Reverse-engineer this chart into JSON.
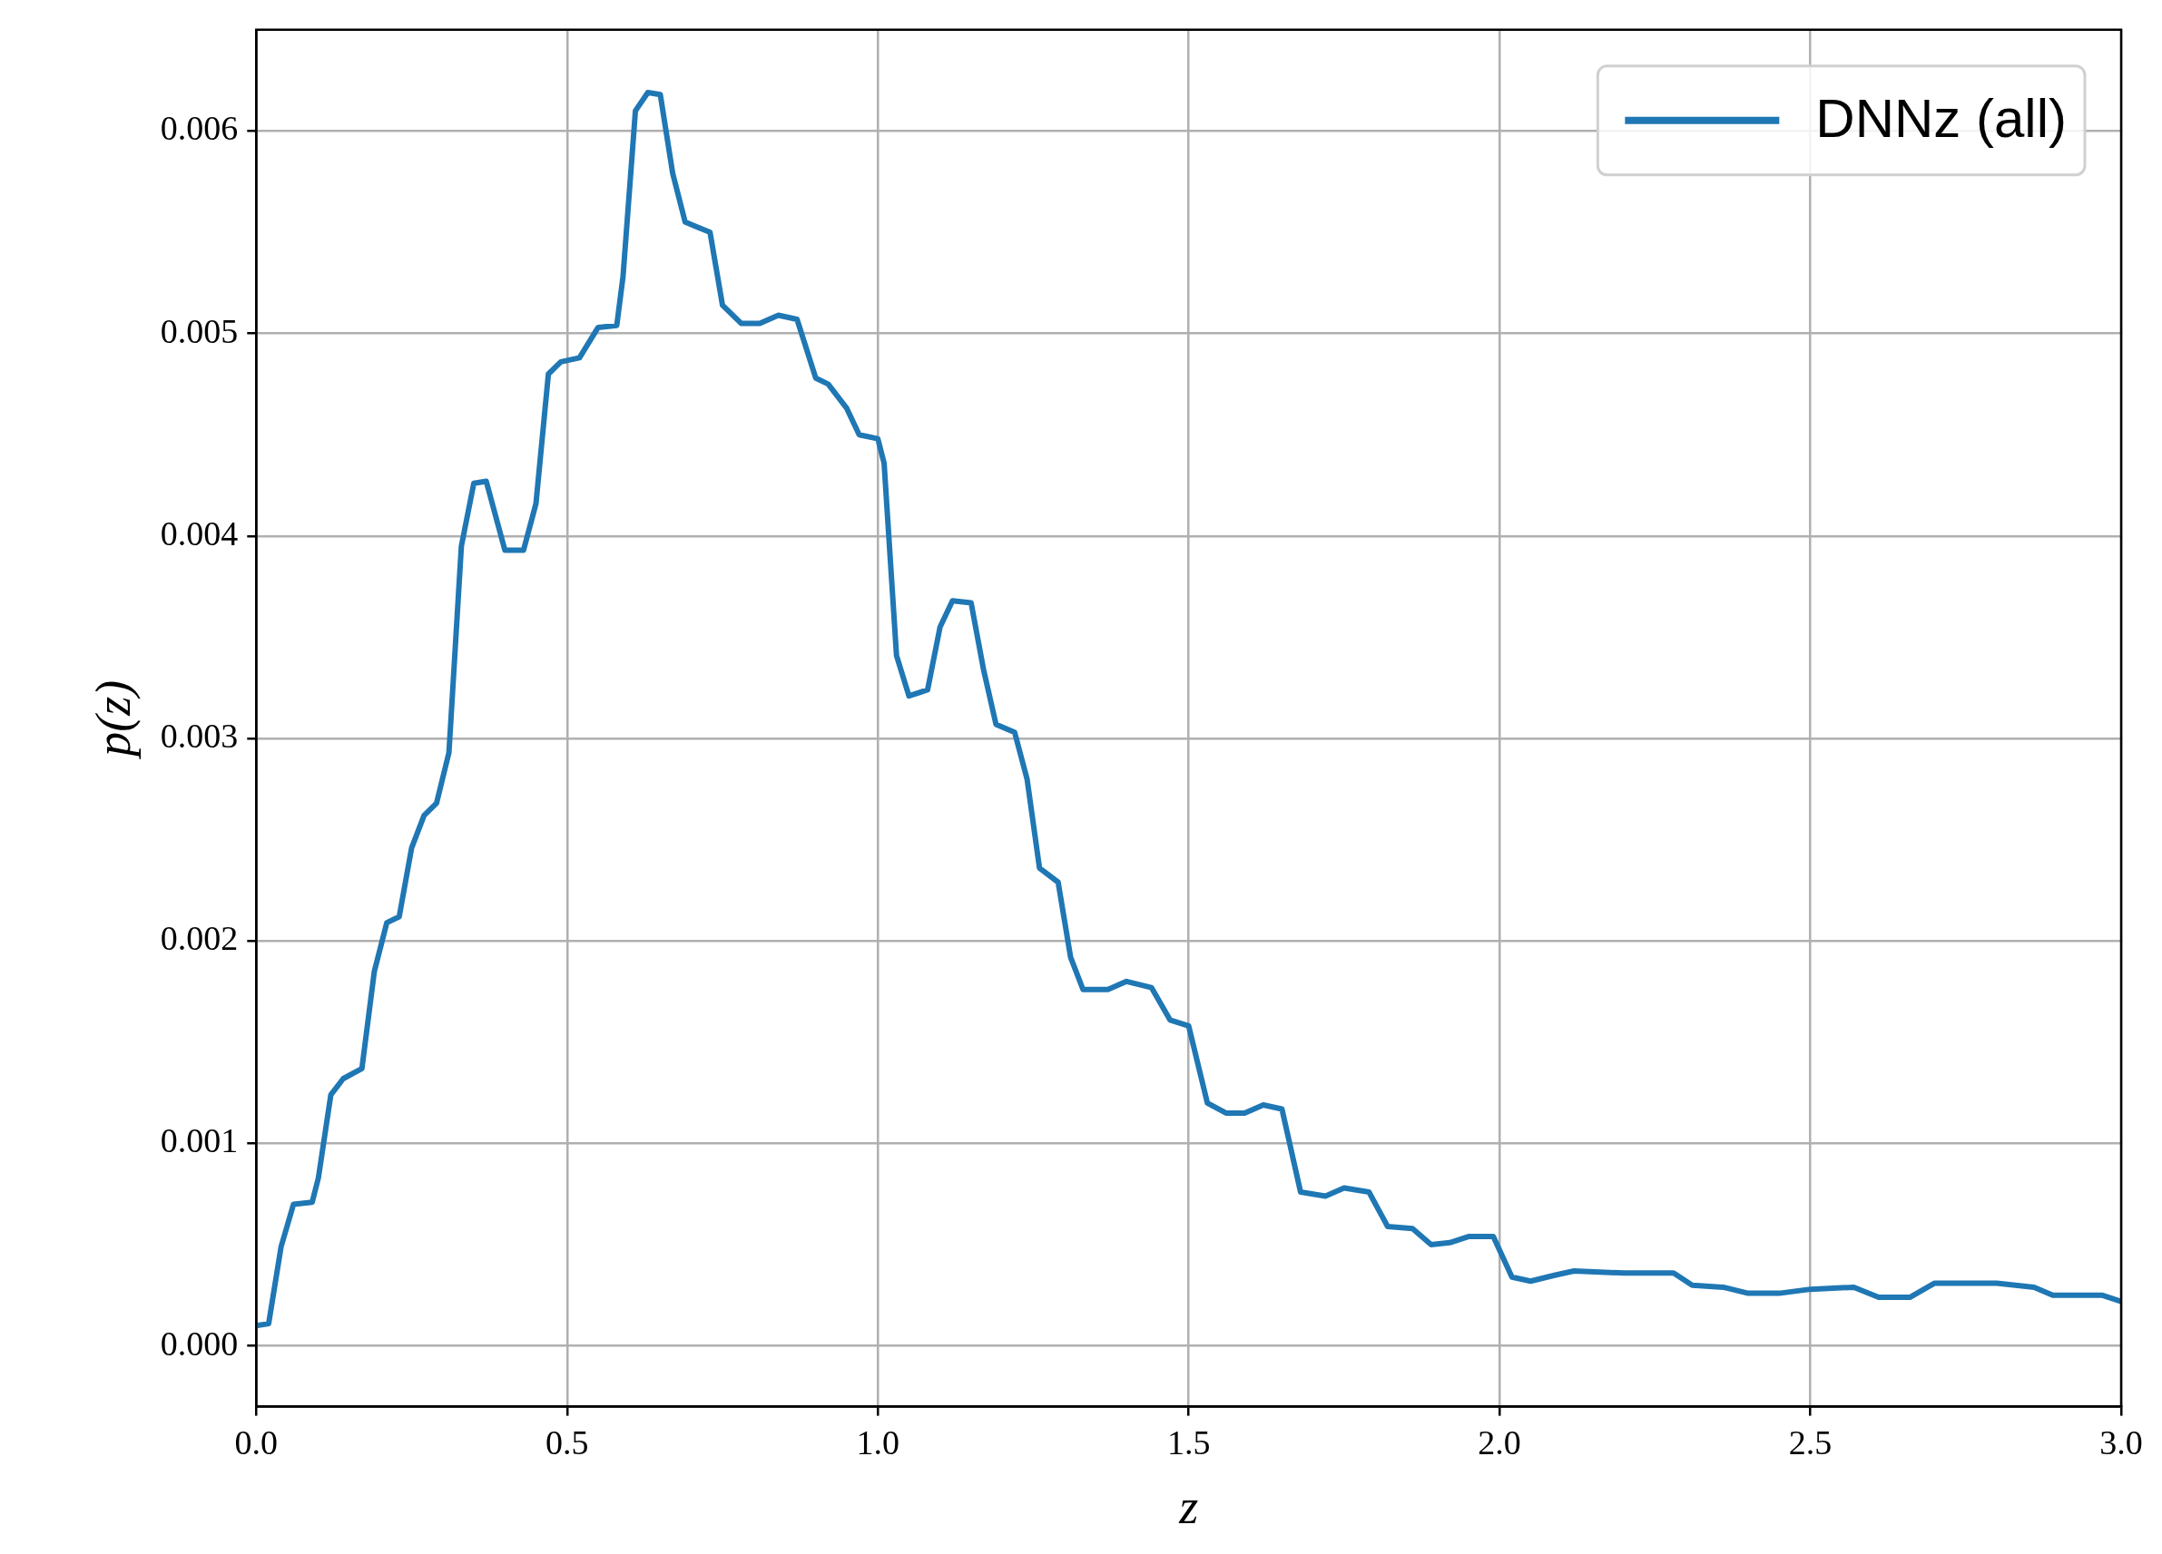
{
  "chart_data": {
    "type": "line",
    "xlabel": "z",
    "ylabel": "p(z)",
    "legend": "top right",
    "grid": true,
    "xlim": [
      0,
      3
    ],
    "ylim": [
      -0.0003,
      0.0065
    ],
    "xticks": [
      {
        "value": 0,
        "label": "0.0"
      },
      {
        "value": 0.5,
        "label": "0.5"
      },
      {
        "value": 1,
        "label": "1.0"
      },
      {
        "value": 1.5,
        "label": "1.5"
      },
      {
        "value": 2,
        "label": "2.0"
      },
      {
        "value": 2.5,
        "label": "2.5"
      },
      {
        "value": 3,
        "label": "3.0"
      }
    ],
    "yticks": [
      {
        "value": 0,
        "label": "0.000"
      },
      {
        "value": 0.001,
        "label": "0.001"
      },
      {
        "value": 0.002,
        "label": "0.002"
      },
      {
        "value": 0.003,
        "label": "0.003"
      },
      {
        "value": 0.004,
        "label": "0.004"
      },
      {
        "value": 0.005,
        "label": "0.005"
      },
      {
        "value": 0.006,
        "label": "0.006"
      }
    ],
    "series": [
      {
        "name": "DNNz (all)",
        "color": "#1f77b4",
        "x": [
          0,
          0.02,
          0.04,
          0.06,
          0.09,
          0.1,
          0.12,
          0.14,
          0.17,
          0.19,
          0.21,
          0.23,
          0.25,
          0.27,
          0.29,
          0.31,
          0.33,
          0.35,
          0.37,
          0.4,
          0.43,
          0.45,
          0.47,
          0.49,
          0.52,
          0.55,
          0.58,
          0.59,
          0.61,
          0.63,
          0.65,
          0.67,
          0.69,
          0.73,
          0.75,
          0.78,
          0.81,
          0.84,
          0.87,
          0.9,
          0.92,
          0.95,
          0.97,
          1.0,
          1.01,
          1.03,
          1.05,
          1.08,
          1.1,
          1.12,
          1.15,
          1.17,
          1.19,
          1.22,
          1.24,
          1.26,
          1.29,
          1.31,
          1.33,
          1.37,
          1.4,
          1.44,
          1.47,
          1.5,
          1.53,
          1.56,
          1.59,
          1.62,
          1.65,
          1.68,
          1.72,
          1.75,
          1.79,
          1.82,
          1.86,
          1.89,
          1.92,
          1.95,
          1.99,
          2.02,
          2.05,
          2.09,
          2.12,
          2.2,
          2.28,
          2.31,
          2.36,
          2.4,
          2.45,
          2.5,
          2.57,
          2.61,
          2.66,
          2.7,
          2.8,
          2.86,
          2.89,
          2.97,
          3.0
        ],
        "values": [
          0.0001,
          0.00011,
          0.00049,
          0.0007,
          0.00071,
          0.00083,
          0.00124,
          0.00132,
          0.00137,
          0.00185,
          0.00209,
          0.00212,
          0.00246,
          0.00262,
          0.00268,
          0.00293,
          0.00395,
          0.00426,
          0.00427,
          0.00393,
          0.00393,
          0.00416,
          0.0048,
          0.00486,
          0.00488,
          0.00503,
          0.00504,
          0.00528,
          0.0061,
          0.00619,
          0.00618,
          0.00579,
          0.00555,
          0.0055,
          0.00514,
          0.00505,
          0.00505,
          0.00509,
          0.00507,
          0.00478,
          0.00475,
          0.00463,
          0.0045,
          0.00448,
          0.00436,
          0.00341,
          0.00321,
          0.00324,
          0.00355,
          0.00368,
          0.00367,
          0.00334,
          0.00307,
          0.00303,
          0.0028,
          0.00236,
          0.00229,
          0.00192,
          0.00176,
          0.00176,
          0.0018,
          0.00177,
          0.00161,
          0.00158,
          0.0012,
          0.00115,
          0.00115,
          0.00119,
          0.00117,
          0.00076,
          0.00074,
          0.00078,
          0.00076,
          0.00059,
          0.00058,
          0.0005,
          0.00051,
          0.00054,
          0.00054,
          0.00034,
          0.00032,
          0.00035,
          0.00037,
          0.00036,
          0.00036,
          0.0003,
          0.00029,
          0.00026,
          0.00026,
          0.00028,
          0.00029,
          0.00024,
          0.00024,
          0.00031,
          0.00031,
          0.00029,
          0.00025,
          0.00025,
          0.00022
        ]
      }
    ]
  }
}
